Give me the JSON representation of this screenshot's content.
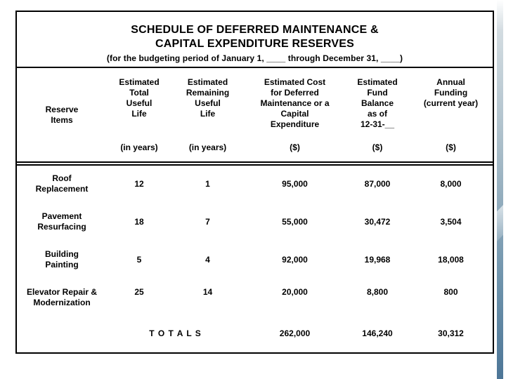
{
  "accent": {
    "strip_top_color": "#d3dce1",
    "strip_bottom_color": "#4d7697"
  },
  "table": {
    "title_line1": "SCHEDULE OF DEFERRED MAINTENANCE &",
    "title_line2": "CAPITAL EXPENDITURE RESERVES",
    "subtitle": "(for the budgeting period of January 1, ____ through December 31, ____)",
    "columns": [
      {
        "id": "reserve-items",
        "lines": [
          "Reserve",
          "Items"
        ],
        "footer": ""
      },
      {
        "id": "estimated-total-useful-life",
        "lines": [
          "Estimated",
          "Total",
          "Useful",
          "Life"
        ],
        "footer": "(in years)"
      },
      {
        "id": "estimated-remaining-useful-life",
        "lines": [
          "Estimated",
          "Remaining",
          "Useful",
          "Life"
        ],
        "footer": "(in years)"
      },
      {
        "id": "estimated-cost",
        "lines": [
          "Estimated Cost",
          "for Deferred",
          "Maintenance or a",
          "Capital",
          "Expenditure"
        ],
        "footer": "($)"
      },
      {
        "id": "estimated-fund-balance",
        "lines": [
          "Estimated",
          "Fund",
          "Balance",
          "as of",
          "12-31-__"
        ],
        "footer": "($)"
      },
      {
        "id": "annual-funding",
        "lines": [
          "Annual",
          "Funding",
          "(current year)"
        ],
        "footer": "($)"
      }
    ],
    "rows": [
      {
        "item": [
          "Roof",
          "Replacement"
        ],
        "values": [
          "12",
          "1",
          "95,000",
          "87,000",
          "8,000"
        ]
      },
      {
        "item": [
          "Pavement",
          "Resurfacing"
        ],
        "values": [
          "18",
          "7",
          "55,000",
          "30,472",
          "3,504"
        ]
      },
      {
        "item": [
          "Building",
          "Painting"
        ],
        "values": [
          "5",
          "4",
          "92,000",
          "19,968",
          "18,008"
        ]
      },
      {
        "item": [
          "Elevator Repair &",
          "Modernization"
        ],
        "values": [
          "25",
          "14",
          "20,000",
          "8,800",
          "800"
        ]
      }
    ],
    "totals": {
      "label": "T O T A L S",
      "values": [
        "262,000",
        "146,240",
        "30,312"
      ]
    }
  }
}
